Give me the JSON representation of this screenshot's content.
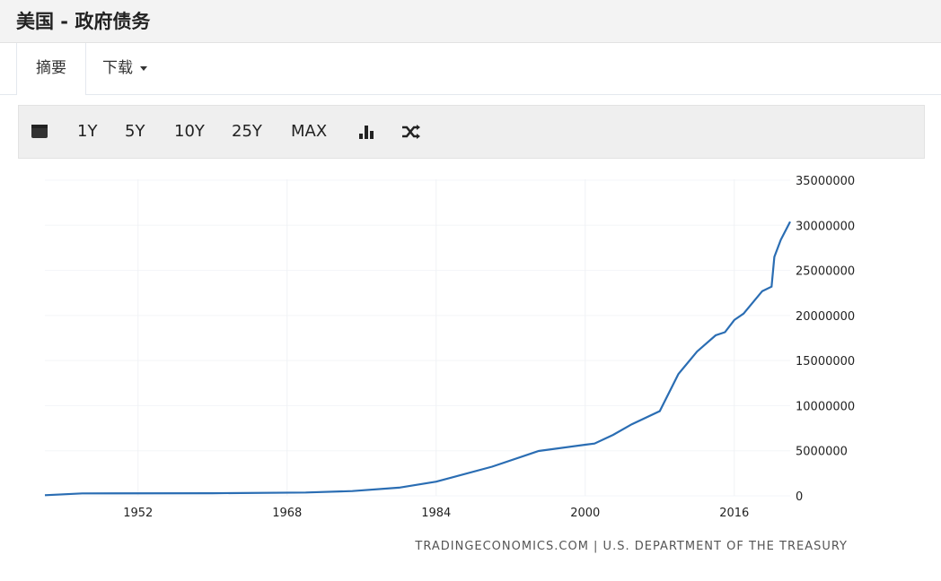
{
  "header": {
    "title": "美国 - 政府债务"
  },
  "tabs": [
    {
      "label": "摘要"
    },
    {
      "label": "下载"
    }
  ],
  "toolbar": {
    "items": [
      "1Y",
      "5Y",
      "10Y",
      "25Y",
      "MAX"
    ],
    "icons": [
      "calendar-icon",
      "bar-chart-icon",
      "shuffle-icon"
    ]
  },
  "source": "TRADINGECONOMICS.COM | U.S. DEPARTMENT OF THE TREASURY",
  "colors": {
    "line": "#2a6db3"
  },
  "chart_data": {
    "type": "line",
    "xlim": [
      1942,
      2022
    ],
    "ylim": [
      0,
      35000000
    ],
    "xticks": [
      "1952",
      "1968",
      "1984",
      "2000",
      "2016"
    ],
    "yticks": [
      "0",
      "5000000",
      "10000000",
      "15000000",
      "20000000",
      "25000000",
      "30000000",
      "35000000"
    ],
    "grid": true,
    "x": [
      1942,
      1946,
      1960,
      1970,
      1975,
      1980,
      1984,
      1990,
      1995,
      2000,
      2001,
      2003,
      2005,
      2008,
      2010,
      2012,
      2014,
      2015,
      2016,
      2017,
      2019,
      2020,
      2020.3,
      2021,
      2022
    ],
    "values": [
      72000,
      269000,
      290000,
      370000,
      530000,
      908000,
      1570000,
      3230000,
      4970000,
      5670000,
      5800000,
      6760000,
      7930000,
      9400000,
      13500000,
      16000000,
      17800000,
      18150000,
      19500000,
      20200000,
      22700000,
      23200000,
      26500000,
      28400000,
      30400000
    ]
  }
}
